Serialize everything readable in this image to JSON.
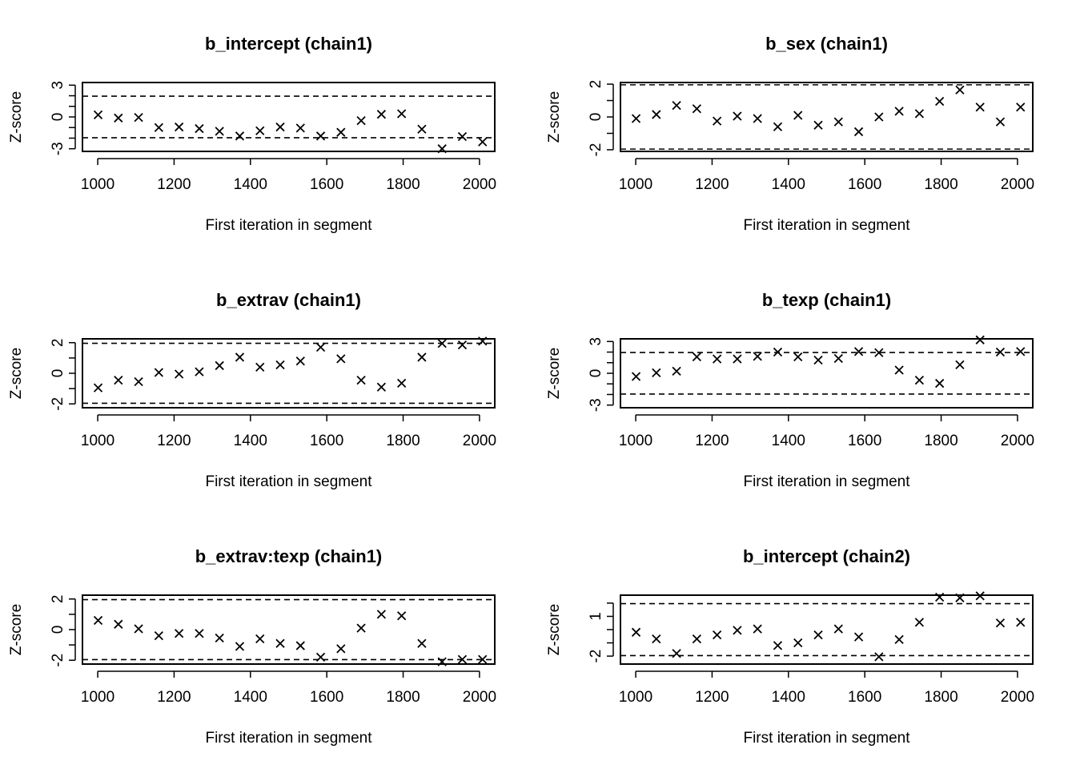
{
  "figure": {
    "x_axis_label": "First iteration in segment",
    "y_axis_label": "Z-score",
    "x_ticks": [
      1000,
      1200,
      1400,
      1600,
      1800,
      2000
    ]
  },
  "chart_data": [
    {
      "type": "scatter",
      "title": "b_intercept (chain1)",
      "xlabel": "First iteration in segment",
      "ylabel": "Z-score",
      "xlim": [
        960,
        2040
      ],
      "ylim": [
        -3.25,
        3.25
      ],
      "y_tick_labels": [
        -3,
        0,
        3
      ],
      "y_minor_ticks": [
        -3,
        -2,
        -1,
        0,
        1,
        2,
        3
      ],
      "reference_lines": [
        -1.96,
        1.96
      ],
      "x": [
        1001,
        1054,
        1107,
        1160,
        1213,
        1266,
        1319,
        1372,
        1425,
        1478,
        1531,
        1584,
        1637,
        1690,
        1743,
        1796,
        1849,
        1902,
        1955,
        2008
      ],
      "y": [
        0.2,
        -0.1,
        -0.05,
        -1.0,
        -0.95,
        -1.1,
        -1.35,
        -1.8,
        -1.3,
        -0.95,
        -1.05,
        -1.8,
        -1.45,
        -0.35,
        0.25,
        0.3,
        -1.15,
        -3.0,
        -1.85,
        -2.35
      ]
    },
    {
      "type": "scatter",
      "title": "b_sex (chain1)",
      "xlabel": "First iteration in segment",
      "ylabel": "Z-score",
      "xlim": [
        960,
        2040
      ],
      "ylim": [
        -2.1,
        2.1
      ],
      "y_tick_labels": [
        -2,
        0,
        2
      ],
      "y_minor_ticks": [
        -2,
        -1,
        0,
        1,
        2
      ],
      "reference_lines": [
        -1.96,
        1.96
      ],
      "x": [
        1001,
        1054,
        1107,
        1160,
        1213,
        1266,
        1319,
        1372,
        1425,
        1478,
        1531,
        1584,
        1637,
        1690,
        1743,
        1796,
        1849,
        1902,
        1955,
        2008
      ],
      "y": [
        -0.1,
        0.15,
        0.7,
        0.5,
        -0.25,
        0.05,
        -0.1,
        -0.6,
        0.1,
        -0.5,
        -0.3,
        -0.9,
        0.0,
        0.35,
        0.2,
        0.95,
        1.65,
        0.6,
        -0.3,
        0.6
      ]
    },
    {
      "type": "scatter",
      "title": "b_extrav (chain1)",
      "xlabel": "First iteration in segment",
      "ylabel": "Z-score",
      "xlim": [
        960,
        2040
      ],
      "ylim": [
        -2.25,
        2.25
      ],
      "y_tick_labels": [
        -2,
        0,
        2
      ],
      "y_minor_ticks": [
        -2,
        -1,
        0,
        1,
        2
      ],
      "reference_lines": [
        -1.96,
        1.96
      ],
      "x": [
        1001,
        1054,
        1107,
        1160,
        1213,
        1266,
        1319,
        1372,
        1425,
        1478,
        1531,
        1584,
        1637,
        1690,
        1743,
        1796,
        1849,
        1902,
        1955,
        2008
      ],
      "y": [
        -0.95,
        -0.45,
        -0.55,
        0.05,
        -0.05,
        0.1,
        0.5,
        1.05,
        0.4,
        0.55,
        0.8,
        1.7,
        0.95,
        -0.45,
        -0.9,
        -0.65,
        1.05,
        1.95,
        1.85,
        2.1
      ]
    },
    {
      "type": "scatter",
      "title": "b_texp (chain1)",
      "xlabel": "First iteration in segment",
      "ylabel": "Z-score",
      "xlim": [
        960,
        2040
      ],
      "ylim": [
        -3.25,
        3.25
      ],
      "y_tick_labels": [
        -3,
        0,
        3
      ],
      "y_minor_ticks": [
        -3,
        -2,
        -1,
        0,
        1,
        2,
        3
      ],
      "reference_lines": [
        -1.96,
        1.96
      ],
      "x": [
        1001,
        1054,
        1107,
        1160,
        1213,
        1266,
        1319,
        1372,
        1425,
        1478,
        1531,
        1584,
        1637,
        1690,
        1743,
        1796,
        1849,
        1902,
        1955,
        2008
      ],
      "y": [
        -0.3,
        0.05,
        0.2,
        1.55,
        1.35,
        1.35,
        1.6,
        2.0,
        1.55,
        1.25,
        1.4,
        2.05,
        1.95,
        0.3,
        -0.65,
        -0.95,
        0.8,
        3.15,
        2.0,
        2.05
      ]
    },
    {
      "type": "scatter",
      "title": "b_extrav:texp (chain1)",
      "xlabel": "First iteration in segment",
      "ylabel": "Z-score",
      "xlim": [
        960,
        2040
      ],
      "ylim": [
        -2.25,
        2.25
      ],
      "y_tick_labels": [
        -2,
        0,
        2
      ],
      "y_minor_ticks": [
        -2,
        -1,
        0,
        1,
        2
      ],
      "reference_lines": [
        -1.96,
        1.96
      ],
      "x": [
        1001,
        1054,
        1107,
        1160,
        1213,
        1266,
        1319,
        1372,
        1425,
        1478,
        1531,
        1584,
        1637,
        1690,
        1743,
        1796,
        1849,
        1902,
        1955,
        2008
      ],
      "y": [
        0.6,
        0.35,
        0.05,
        -0.4,
        -0.25,
        -0.25,
        -0.55,
        -1.1,
        -0.6,
        -0.9,
        -1.05,
        -1.8,
        -1.25,
        0.1,
        1.0,
        0.9,
        -0.9,
        -2.1,
        -1.95,
        -1.95
      ]
    },
    {
      "type": "scatter",
      "title": "b_intercept (chain2)",
      "xlabel": "First iteration in segment",
      "ylabel": "Z-score",
      "xlim": [
        960,
        2040
      ],
      "ylim": [
        -2.6,
        2.6
      ],
      "y_tick_labels": [
        -2,
        1
      ],
      "y_minor_ticks": [
        -2,
        -1,
        0,
        1,
        2
      ],
      "reference_lines": [
        -1.96,
        1.96
      ],
      "x": [
        1001,
        1054,
        1107,
        1160,
        1213,
        1266,
        1319,
        1372,
        1425,
        1478,
        1531,
        1584,
        1637,
        1690,
        1743,
        1796,
        1849,
        1902,
        1955,
        2008
      ],
      "y": [
        -0.2,
        -0.7,
        -1.8,
        -0.7,
        -0.4,
        -0.05,
        0.05,
        -1.2,
        -1.0,
        -0.4,
        0.05,
        -0.55,
        -2.05,
        -0.75,
        0.55,
        2.45,
        2.4,
        2.55,
        0.5,
        0.55
      ]
    }
  ]
}
